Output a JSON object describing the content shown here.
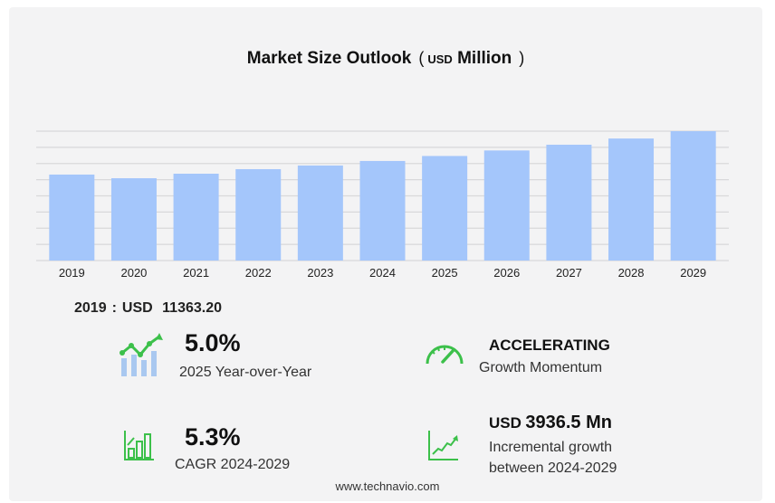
{
  "chart_data": {
    "type": "bar",
    "title": "Market Size Outlook",
    "unit_prefix": "USD",
    "unit": "Million",
    "categories": [
      "2019",
      "2020",
      "2021",
      "2022",
      "2023",
      "2024",
      "2025",
      "2026",
      "2027",
      "2028",
      "2029"
    ],
    "values": [
      11363.2,
      10880,
      11480,
      12080,
      12560,
      13160,
      13820,
      14550,
      15310,
      16130,
      17100
    ],
    "ylim": [
      0,
      17100
    ],
    "grid": true,
    "bar_color": "#a4c6fb"
  },
  "base_year": {
    "year": "2019",
    "sep": ":",
    "currency": "USD",
    "value": "11363.20"
  },
  "stats": {
    "yoy": {
      "value": "5.0%",
      "label": "2025 Year-over-Year",
      "icon": "growth-chart-icon"
    },
    "momentum": {
      "value": "ACCELERATING",
      "label": "Growth Momentum",
      "icon": "speedometer-icon"
    },
    "cagr": {
      "value": "5.3%",
      "label": "CAGR 2024-2029",
      "icon": "bar-chart-icon"
    },
    "incremental": {
      "currency": "USD",
      "value": "3936.5 Mn",
      "label1": "Incremental growth",
      "label2": "between 2024-2029",
      "icon": "trend-line-icon"
    }
  },
  "footer": "www.technavio.com",
  "colors": {
    "accent_green": "#3cc04a",
    "bar": "#a4c6fb",
    "icon_blue": "#a9c8f0"
  }
}
